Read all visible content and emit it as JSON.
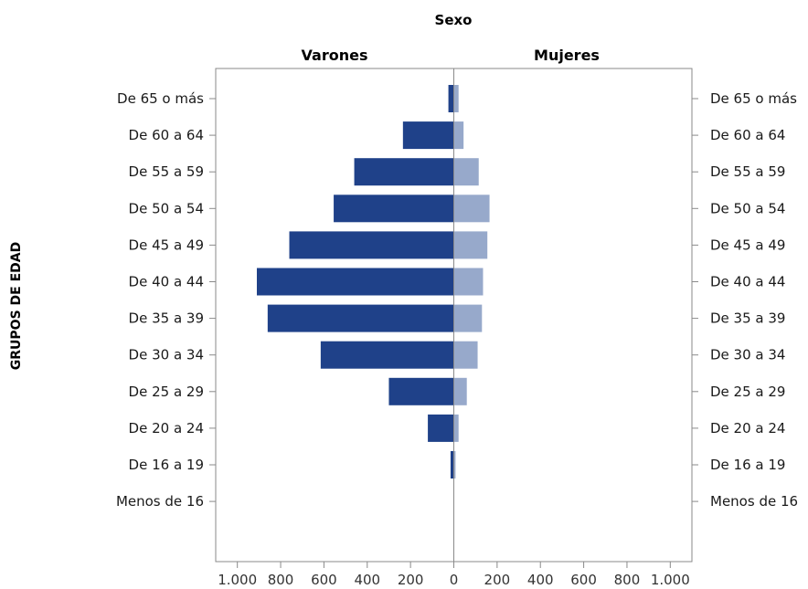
{
  "chart_data": {
    "type": "bar",
    "orientation": "horizontal",
    "layout": "population-pyramid",
    "title": "Sexo",
    "ylabel": "GRUPOS DE EDAD",
    "categories": [
      "De 65 o más",
      "De 60 a 64",
      "De 55 a 59",
      "De 50 a 54",
      "De 45 a 49",
      "De 40 a 44",
      "De 35 a 39",
      "De 30 a 34",
      "De 25 a 29",
      "De 20 a 24",
      "De 16 a 19",
      "Menos de 16"
    ],
    "series": [
      {
        "name": "Varones",
        "side": "left",
        "color": "#1f4189",
        "values": [
          25,
          235,
          460,
          555,
          760,
          910,
          860,
          615,
          300,
          120,
          15,
          0
        ]
      },
      {
        "name": "Mujeres",
        "side": "right",
        "color": "#97a9cb",
        "values": [
          22,
          45,
          115,
          165,
          155,
          135,
          130,
          110,
          60,
          22,
          8,
          0
        ]
      }
    ],
    "xlim": [
      -1100,
      1100
    ],
    "xticks": [
      -1000,
      -800,
      -600,
      -400,
      -200,
      0,
      200,
      400,
      600,
      800,
      1000
    ],
    "xtick_labels": [
      "1.000",
      "800",
      "600",
      "400",
      "200",
      "0",
      "200",
      "400",
      "600",
      "800",
      "1.000"
    ],
    "grid": false,
    "legend": "none"
  }
}
